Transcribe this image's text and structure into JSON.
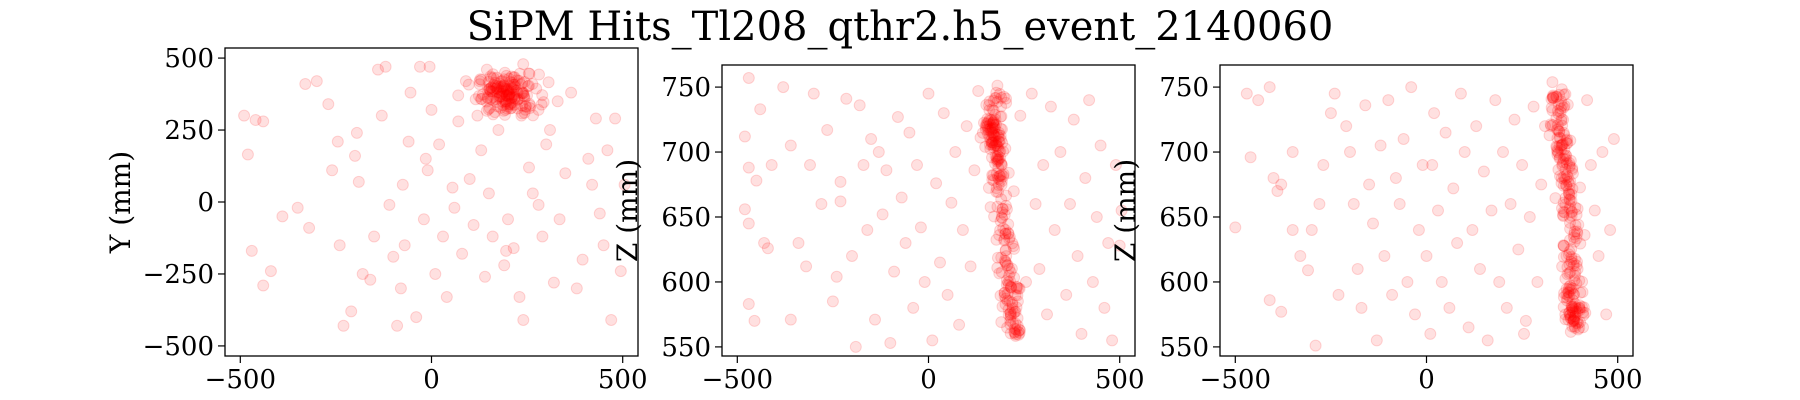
{
  "figure": {
    "title": "SiPM Hits_Tl208_qthr2.h5_event_2140060"
  },
  "chart_data": [
    {
      "type": "scatter",
      "xlim": [
        -540,
        540
      ],
      "ylim": [
        -535,
        535
      ],
      "xticks": [
        -500,
        0,
        500
      ],
      "yticks": [
        -500,
        -250,
        0,
        250,
        500
      ],
      "xlabel": "",
      "ylabel": "Y (mm)",
      "grid": false,
      "marker_color": "#ff0000",
      "marker_alpha": 0.12,
      "cluster": {
        "x": 200,
        "y": 375,
        "sx": 40,
        "sy": 35,
        "n": 170
      },
      "points": [
        {
          "x": -490,
          "y": 300
        },
        {
          "x": -460,
          "y": 285
        },
        {
          "x": -480,
          "y": 165
        },
        {
          "x": -440,
          "y": 280
        },
        {
          "x": -470,
          "y": -170
        },
        {
          "x": -420,
          "y": -240
        },
        {
          "x": -440,
          "y": -290
        },
        {
          "x": -390,
          "y": -50
        },
        {
          "x": -350,
          "y": -20
        },
        {
          "x": -330,
          "y": 410
        },
        {
          "x": -300,
          "y": 420
        },
        {
          "x": -270,
          "y": 340
        },
        {
          "x": -260,
          "y": 110
        },
        {
          "x": -245,
          "y": 210
        },
        {
          "x": -240,
          "y": -150
        },
        {
          "x": -230,
          "y": -430
        },
        {
          "x": -200,
          "y": 160
        },
        {
          "x": -195,
          "y": 240
        },
        {
          "x": -190,
          "y": 70
        },
        {
          "x": -180,
          "y": -250
        },
        {
          "x": -160,
          "y": -270
        },
        {
          "x": -150,
          "y": -120
        },
        {
          "x": -140,
          "y": 460
        },
        {
          "x": -130,
          "y": 300
        },
        {
          "x": -120,
          "y": 470
        },
        {
          "x": -110,
          "y": -10
        },
        {
          "x": -100,
          "y": -190
        },
        {
          "x": -90,
          "y": -430
        },
        {
          "x": -80,
          "y": -300
        },
        {
          "x": -70,
          "y": -150
        },
        {
          "x": -60,
          "y": 210
        },
        {
          "x": -55,
          "y": 380
        },
        {
          "x": -40,
          "y": -400
        },
        {
          "x": -30,
          "y": 470
        },
        {
          "x": -20,
          "y": -60
        },
        {
          "x": -10,
          "y": 110
        },
        {
          "x": 0,
          "y": 320
        },
        {
          "x": 10,
          "y": -250
        },
        {
          "x": 20,
          "y": 200
        },
        {
          "x": 30,
          "y": -120
        },
        {
          "x": 40,
          "y": -330
        },
        {
          "x": 55,
          "y": 50
        },
        {
          "x": 60,
          "y": -20
        },
        {
          "x": 70,
          "y": 280
        },
        {
          "x": 80,
          "y": -180
        },
        {
          "x": 90,
          "y": 420
        },
        {
          "x": 100,
          "y": 80
        },
        {
          "x": 110,
          "y": -80
        },
        {
          "x": 120,
          "y": 300
        },
        {
          "x": 130,
          "y": 180
        },
        {
          "x": 140,
          "y": -260
        },
        {
          "x": 150,
          "y": 30
        },
        {
          "x": 160,
          "y": -120
        },
        {
          "x": 175,
          "y": 250
        },
        {
          "x": 190,
          "y": -220
        },
        {
          "x": 200,
          "y": -60
        },
        {
          "x": 215,
          "y": -160
        },
        {
          "x": 230,
          "y": -330
        },
        {
          "x": 240,
          "y": -410
        },
        {
          "x": 255,
          "y": 120
        },
        {
          "x": 265,
          "y": 30
        },
        {
          "x": 280,
          "y": -10
        },
        {
          "x": 290,
          "y": -120
        },
        {
          "x": 300,
          "y": 200
        },
        {
          "x": 310,
          "y": 250
        },
        {
          "x": 320,
          "y": -280
        },
        {
          "x": 335,
          "y": -60
        },
        {
          "x": 350,
          "y": 100
        },
        {
          "x": 365,
          "y": 380
        },
        {
          "x": 380,
          "y": -300
        },
        {
          "x": 395,
          "y": -200
        },
        {
          "x": 410,
          "y": 150
        },
        {
          "x": 420,
          "y": 60
        },
        {
          "x": 430,
          "y": 290
        },
        {
          "x": 440,
          "y": -40
        },
        {
          "x": 450,
          "y": -150
        },
        {
          "x": 460,
          "y": 180
        },
        {
          "x": 470,
          "y": -410
        },
        {
          "x": 480,
          "y": 290
        },
        {
          "x": 495,
          "y": -240
        },
        {
          "x": 505,
          "y": 60
        },
        {
          "x": -320,
          "y": -90
        },
        {
          "x": -210,
          "y": -380
        },
        {
          "x": 145,
          "y": 460
        },
        {
          "x": -5,
          "y": 470
        },
        {
          "x": 195,
          "y": -170
        },
        {
          "x": 235,
          "y": 300
        },
        {
          "x": -15,
          "y": 150
        },
        {
          "x": 330,
          "y": 350
        },
        {
          "x": -75,
          "y": 60
        }
      ]
    },
    {
      "type": "scatter",
      "xlim": [
        -540,
        540
      ],
      "ylim": [
        543,
        767
      ],
      "xticks": [
        -500,
        0,
        500
      ],
      "yticks": [
        550,
        600,
        650,
        700,
        750
      ],
      "xlabel": "",
      "ylabel": "Z (mm)",
      "grid": false,
      "marker_color": "#ff0000",
      "marker_alpha": 0.12,
      "track": {
        "n": 240,
        "spread": 12,
        "yspread": 3,
        "knots": [
          [
            185,
            748
          ],
          [
            170,
            725
          ],
          [
            165,
            715
          ],
          [
            180,
            703
          ],
          [
            185,
            685
          ],
          [
            190,
            660
          ],
          [
            205,
            630
          ],
          [
            210,
            600
          ],
          [
            215,
            580
          ],
          [
            230,
            560
          ]
        ]
      },
      "points": [
        {
          "x": -470,
          "y": 757
        },
        {
          "x": -440,
          "y": 733
        },
        {
          "x": -480,
          "y": 712
        },
        {
          "x": -470,
          "y": 688
        },
        {
          "x": -450,
          "y": 678
        },
        {
          "x": -480,
          "y": 656
        },
        {
          "x": -470,
          "y": 645
        },
        {
          "x": -430,
          "y": 630
        },
        {
          "x": -420,
          "y": 626
        },
        {
          "x": -470,
          "y": 583
        },
        {
          "x": -455,
          "y": 570
        },
        {
          "x": -410,
          "y": 690
        },
        {
          "x": -380,
          "y": 750
        },
        {
          "x": -360,
          "y": 705
        },
        {
          "x": -340,
          "y": 630
        },
        {
          "x": -320,
          "y": 612
        },
        {
          "x": -310,
          "y": 690
        },
        {
          "x": -300,
          "y": 745
        },
        {
          "x": -280,
          "y": 660
        },
        {
          "x": -265,
          "y": 717
        },
        {
          "x": -250,
          "y": 585
        },
        {
          "x": -240,
          "y": 604
        },
        {
          "x": -230,
          "y": 677
        },
        {
          "x": -215,
          "y": 741
        },
        {
          "x": -200,
          "y": 620
        },
        {
          "x": -190,
          "y": 550
        },
        {
          "x": -180,
          "y": 736
        },
        {
          "x": -170,
          "y": 690
        },
        {
          "x": -160,
          "y": 640
        },
        {
          "x": -150,
          "y": 710
        },
        {
          "x": -140,
          "y": 571
        },
        {
          "x": -130,
          "y": 700
        },
        {
          "x": -120,
          "y": 652
        },
        {
          "x": -110,
          "y": 686
        },
        {
          "x": -100,
          "y": 553
        },
        {
          "x": -90,
          "y": 608
        },
        {
          "x": -80,
          "y": 727
        },
        {
          "x": -70,
          "y": 665
        },
        {
          "x": -60,
          "y": 630
        },
        {
          "x": -50,
          "y": 715
        },
        {
          "x": -40,
          "y": 580
        },
        {
          "x": -30,
          "y": 690
        },
        {
          "x": -20,
          "y": 642
        },
        {
          "x": -10,
          "y": 600
        },
        {
          "x": 0,
          "y": 745
        },
        {
          "x": 10,
          "y": 555
        },
        {
          "x": 20,
          "y": 676
        },
        {
          "x": 30,
          "y": 615
        },
        {
          "x": 40,
          "y": 730
        },
        {
          "x": 50,
          "y": 590
        },
        {
          "x": 60,
          "y": 661
        },
        {
          "x": 70,
          "y": 700
        },
        {
          "x": 80,
          "y": 567
        },
        {
          "x": 90,
          "y": 640
        },
        {
          "x": 100,
          "y": 720
        },
        {
          "x": 110,
          "y": 612
        },
        {
          "x": 120,
          "y": 686
        },
        {
          "x": 130,
          "y": 747
        },
        {
          "x": 270,
          "y": 745
        },
        {
          "x": 280,
          "y": 660
        },
        {
          "x": 290,
          "y": 610
        },
        {
          "x": 300,
          "y": 690
        },
        {
          "x": 310,
          "y": 575
        },
        {
          "x": 320,
          "y": 735
        },
        {
          "x": 330,
          "y": 640
        },
        {
          "x": 345,
          "y": 700
        },
        {
          "x": 360,
          "y": 590
        },
        {
          "x": 370,
          "y": 660
        },
        {
          "x": 380,
          "y": 725
        },
        {
          "x": 390,
          "y": 620
        },
        {
          "x": 400,
          "y": 560
        },
        {
          "x": 410,
          "y": 680
        },
        {
          "x": 420,
          "y": 740
        },
        {
          "x": 430,
          "y": 600
        },
        {
          "x": 440,
          "y": 650
        },
        {
          "x": 450,
          "y": 705
        },
        {
          "x": 460,
          "y": 580
        },
        {
          "x": 470,
          "y": 630
        },
        {
          "x": 480,
          "y": 555
        },
        {
          "x": 490,
          "y": 690
        },
        {
          "x": 500,
          "y": 628
        },
        {
          "x": 505,
          "y": 655
        },
        {
          "x": -360,
          "y": 571
        },
        {
          "x": -230,
          "y": 662
        },
        {
          "x": 240,
          "y": 728
        },
        {
          "x": 255,
          "y": 600
        }
      ]
    },
    {
      "type": "scatter",
      "xlim": [
        -540,
        540
      ],
      "ylim": [
        543,
        767
      ],
      "xticks": [
        -500,
        0,
        500
      ],
      "yticks": [
        550,
        600,
        650,
        700,
        750
      ],
      "xlabel": "",
      "ylabel": "Z (mm)",
      "grid": false,
      "marker_color": "#ff0000",
      "marker_alpha": 0.12,
      "track": {
        "n": 240,
        "spread": 12,
        "yspread": 3,
        "knots": [
          [
            345,
            750
          ],
          [
            345,
            725
          ],
          [
            355,
            700
          ],
          [
            365,
            680
          ],
          [
            375,
            665
          ],
          [
            375,
            640
          ],
          [
            380,
            615
          ],
          [
            380,
            590
          ],
          [
            385,
            575
          ],
          [
            385,
            560
          ]
        ]
      },
      "points": [
        {
          "x": -500,
          "y": 642
        },
        {
          "x": -470,
          "y": 745
        },
        {
          "x": -460,
          "y": 696
        },
        {
          "x": -440,
          "y": 740
        },
        {
          "x": -410,
          "y": 750
        },
        {
          "x": -400,
          "y": 680
        },
        {
          "x": -390,
          "y": 670
        },
        {
          "x": -380,
          "y": 675
        },
        {
          "x": -410,
          "y": 586
        },
        {
          "x": -380,
          "y": 577
        },
        {
          "x": -350,
          "y": 640
        },
        {
          "x": -330,
          "y": 620
        },
        {
          "x": -310,
          "y": 609
        },
        {
          "x": -290,
          "y": 551
        },
        {
          "x": -280,
          "y": 660
        },
        {
          "x": -270,
          "y": 690
        },
        {
          "x": -250,
          "y": 730
        },
        {
          "x": -240,
          "y": 745
        },
        {
          "x": -230,
          "y": 590
        },
        {
          "x": -210,
          "y": 720
        },
        {
          "x": -200,
          "y": 700
        },
        {
          "x": -190,
          "y": 660
        },
        {
          "x": -180,
          "y": 610
        },
        {
          "x": -170,
          "y": 580
        },
        {
          "x": -160,
          "y": 736
        },
        {
          "x": -150,
          "y": 675
        },
        {
          "x": -140,
          "y": 645
        },
        {
          "x": -130,
          "y": 555
        },
        {
          "x": -120,
          "y": 705
        },
        {
          "x": -110,
          "y": 620
        },
        {
          "x": -100,
          "y": 740
        },
        {
          "x": -90,
          "y": 590
        },
        {
          "x": -80,
          "y": 680
        },
        {
          "x": -70,
          "y": 660
        },
        {
          "x": -60,
          "y": 710
        },
        {
          "x": -50,
          "y": 600
        },
        {
          "x": -40,
          "y": 750
        },
        {
          "x": -30,
          "y": 575
        },
        {
          "x": -20,
          "y": 640
        },
        {
          "x": -10,
          "y": 690
        },
        {
          "x": 0,
          "y": 620
        },
        {
          "x": 10,
          "y": 560
        },
        {
          "x": 20,
          "y": 730
        },
        {
          "x": 30,
          "y": 655
        },
        {
          "x": 40,
          "y": 600
        },
        {
          "x": 50,
          "y": 715
        },
        {
          "x": 60,
          "y": 580
        },
        {
          "x": 70,
          "y": 672
        },
        {
          "x": 80,
          "y": 630
        },
        {
          "x": 90,
          "y": 745
        },
        {
          "x": 100,
          "y": 700
        },
        {
          "x": 110,
          "y": 565
        },
        {
          "x": 120,
          "y": 640
        },
        {
          "x": 130,
          "y": 720
        },
        {
          "x": 140,
          "y": 610
        },
        {
          "x": 150,
          "y": 685
        },
        {
          "x": 160,
          "y": 555
        },
        {
          "x": 170,
          "y": 655
        },
        {
          "x": 180,
          "y": 740
        },
        {
          "x": 190,
          "y": 600
        },
        {
          "x": 200,
          "y": 700
        },
        {
          "x": 210,
          "y": 580
        },
        {
          "x": 220,
          "y": 660
        },
        {
          "x": 230,
          "y": 725
        },
        {
          "x": 240,
          "y": 625
        },
        {
          "x": 250,
          "y": 690
        },
        {
          "x": 260,
          "y": 570
        },
        {
          "x": 270,
          "y": 650
        },
        {
          "x": 280,
          "y": 735
        },
        {
          "x": 290,
          "y": 600
        },
        {
          "x": 300,
          "y": 675
        },
        {
          "x": 310,
          "y": 720
        },
        {
          "x": 420,
          "y": 740
        },
        {
          "x": 430,
          "y": 690
        },
        {
          "x": 440,
          "y": 655
        },
        {
          "x": 450,
          "y": 620
        },
        {
          "x": 460,
          "y": 700
        },
        {
          "x": 470,
          "y": 575
        },
        {
          "x": 480,
          "y": 640
        },
        {
          "x": 490,
          "y": 710
        },
        {
          "x": -350,
          "y": 700
        },
        {
          "x": -300,
          "y": 640
        },
        {
          "x": 15,
          "y": 690
        },
        {
          "x": 255,
          "y": 560
        }
      ]
    }
  ]
}
